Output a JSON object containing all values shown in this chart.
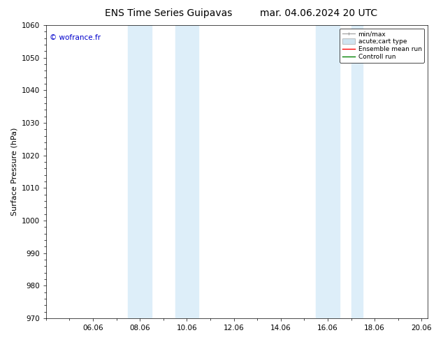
{
  "title_left": "ENS Time Series Guipavas",
  "title_right": "mar. 04.06.2024 20 UTC",
  "ylabel": "Surface Pressure (hPa)",
  "ylim": [
    970,
    1060
  ],
  "yticks": [
    970,
    980,
    990,
    1000,
    1010,
    1020,
    1030,
    1040,
    1050,
    1060
  ],
  "xlim": [
    4.0,
    20.25
  ],
  "xtick_labels": [
    "06.06",
    "08.06",
    "10.06",
    "12.06",
    "14.06",
    "16.06",
    "18.06",
    "20.06"
  ],
  "xtick_positions": [
    6,
    8,
    10,
    12,
    14,
    16,
    18,
    20
  ],
  "shaded_regions": [
    {
      "xmin": 7.5,
      "xmax": 8.5
    },
    {
      "xmin": 9.5,
      "xmax": 10.5
    },
    {
      "xmin": 15.5,
      "xmax": 16.5
    },
    {
      "xmin": 17.0,
      "xmax": 17.5
    }
  ],
  "shade_color": "#ddeef9",
  "background_color": "#ffffff",
  "watermark": "© wofrance.fr",
  "watermark_color": "#0000cc",
  "title_fontsize": 10,
  "label_fontsize": 8,
  "tick_fontsize": 7.5
}
